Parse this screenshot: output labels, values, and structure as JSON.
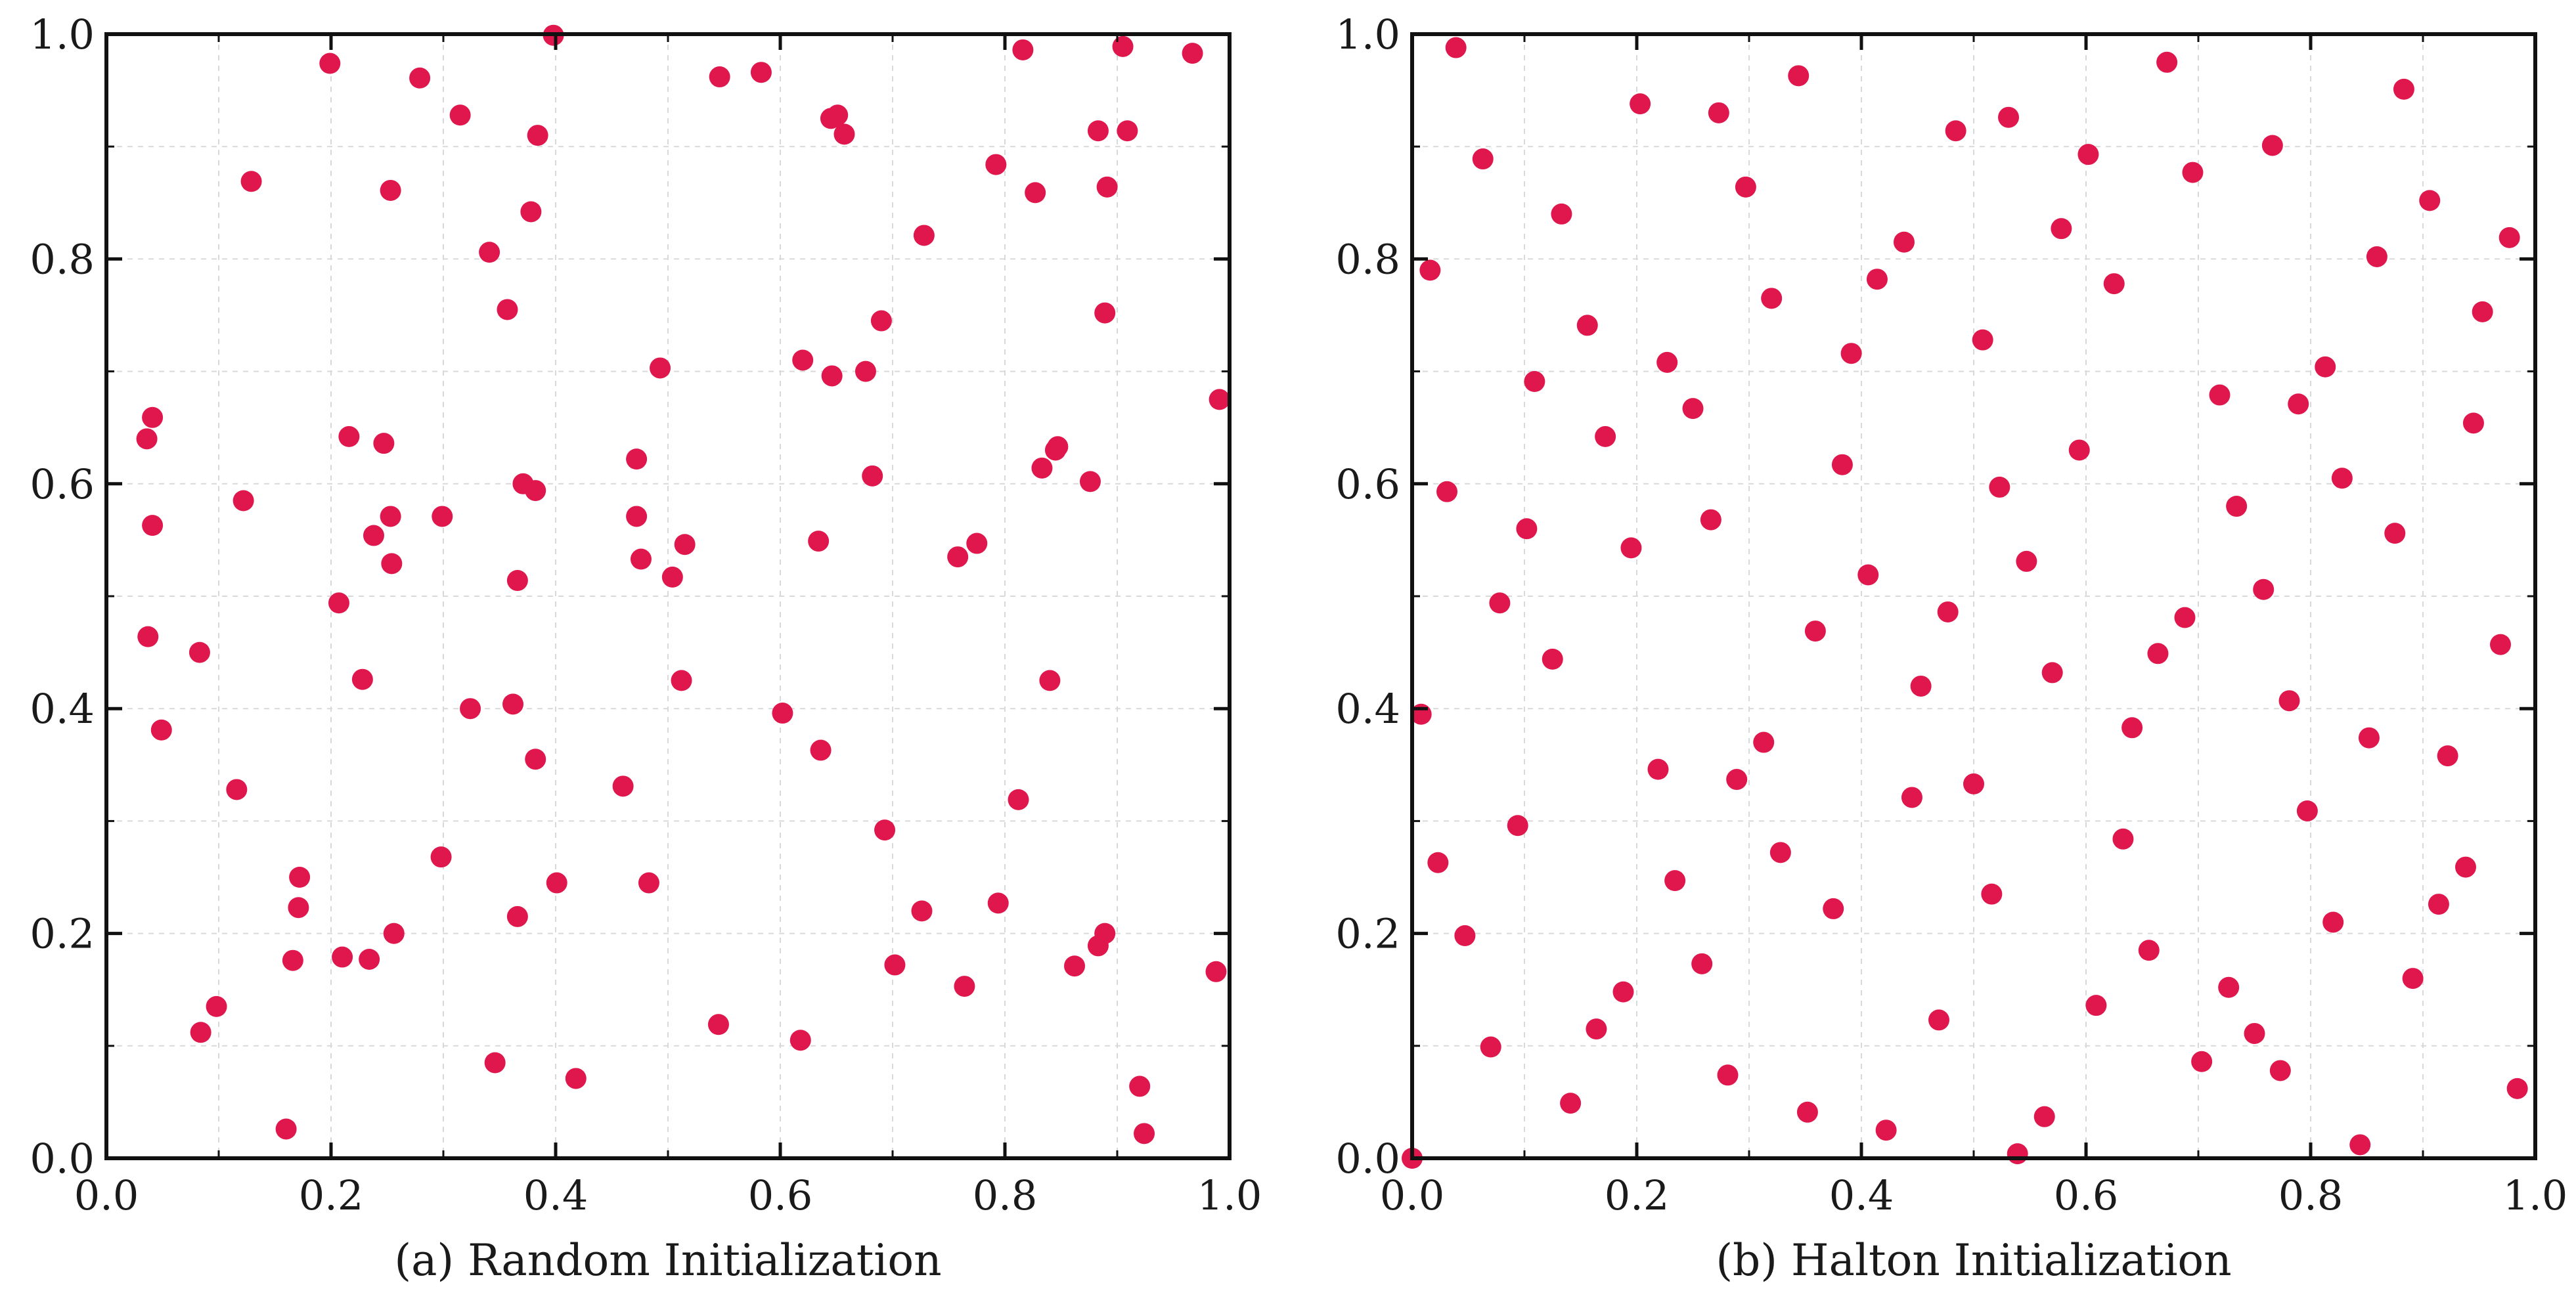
{
  "chart_data": [
    {
      "type": "scatter",
      "title": "(a) Random Initialization",
      "xlabel": "",
      "ylabel": "",
      "xlim": [
        0.0,
        1.0
      ],
      "ylim": [
        0.0,
        1.0
      ],
      "xticks": [
        "0.0",
        "0.2",
        "0.4",
        "0.6",
        "0.8",
        "1.0"
      ],
      "yticks": [
        "0.0",
        "0.2",
        "0.4",
        "0.6",
        "0.8",
        "1.0"
      ],
      "grid": true,
      "marker_color": "#e0174c",
      "series": [
        {
          "points": [
            [
              0.199,
              0.974
            ],
            [
              0.279,
              0.961
            ],
            [
              0.315,
              0.928
            ],
            [
              0.129,
              0.869
            ],
            [
              0.253,
              0.861
            ],
            [
              0.398,
              0.999
            ],
            [
              0.384,
              0.91
            ],
            [
              0.378,
              0.842
            ],
            [
              0.341,
              0.806
            ],
            [
              0.357,
              0.755
            ],
            [
              0.546,
              0.962
            ],
            [
              0.583,
              0.966
            ],
            [
              0.645,
              0.925
            ],
            [
              0.651,
              0.928
            ],
            [
              0.657,
              0.911
            ],
            [
              0.728,
              0.821
            ],
            [
              0.69,
              0.745
            ],
            [
              0.62,
              0.71
            ],
            [
              0.646,
              0.696
            ],
            [
              0.676,
              0.7
            ],
            [
              0.816,
              0.986
            ],
            [
              0.905,
              0.989
            ],
            [
              0.967,
              0.983
            ],
            [
              0.883,
              0.914
            ],
            [
              0.909,
              0.914
            ],
            [
              0.792,
              0.884
            ],
            [
              0.827,
              0.859
            ],
            [
              0.891,
              0.864
            ],
            [
              0.889,
              0.752
            ],
            [
              0.991,
              0.675
            ],
            [
              0.041,
              0.659
            ],
            [
              0.036,
              0.64
            ],
            [
              0.041,
              0.563
            ],
            [
              0.122,
              0.585
            ],
            [
              0.216,
              0.642
            ],
            [
              0.247,
              0.636
            ],
            [
              0.253,
              0.571
            ],
            [
              0.238,
              0.554
            ],
            [
              0.254,
              0.529
            ],
            [
              0.299,
              0.571
            ],
            [
              0.366,
              0.514
            ],
            [
              0.371,
              0.6
            ],
            [
              0.382,
              0.594
            ],
            [
              0.472,
              0.622
            ],
            [
              0.472,
              0.571
            ],
            [
              0.476,
              0.533
            ],
            [
              0.493,
              0.703
            ],
            [
              0.504,
              0.517
            ],
            [
              0.515,
              0.546
            ],
            [
              0.682,
              0.607
            ],
            [
              0.634,
              0.549
            ],
            [
              0.758,
              0.535
            ],
            [
              0.775,
              0.547
            ],
            [
              0.847,
              0.633
            ],
            [
              0.845,
              0.63
            ],
            [
              0.833,
              0.614
            ],
            [
              0.876,
              0.602
            ],
            [
              0.037,
              0.464
            ],
            [
              0.083,
              0.45
            ],
            [
              0.049,
              0.381
            ],
            [
              0.207,
              0.494
            ],
            [
              0.228,
              0.426
            ],
            [
              0.116,
              0.328
            ],
            [
              0.324,
              0.4
            ],
            [
              0.362,
              0.404
            ],
            [
              0.382,
              0.355
            ],
            [
              0.512,
              0.425
            ],
            [
              0.602,
              0.396
            ],
            [
              0.636,
              0.363
            ],
            [
              0.46,
              0.331
            ],
            [
              0.84,
              0.425
            ],
            [
              0.812,
              0.319
            ],
            [
              0.298,
              0.268
            ],
            [
              0.172,
              0.25
            ],
            [
              0.171,
              0.223
            ],
            [
              0.256,
              0.2
            ],
            [
              0.21,
              0.179
            ],
            [
              0.234,
              0.177
            ],
            [
              0.166,
              0.176
            ],
            [
              0.366,
              0.215
            ],
            [
              0.401,
              0.245
            ],
            [
              0.483,
              0.245
            ],
            [
              0.693,
              0.292
            ],
            [
              0.726,
              0.22
            ],
            [
              0.794,
              0.227
            ],
            [
              0.702,
              0.172
            ],
            [
              0.764,
              0.153
            ],
            [
              0.862,
              0.171
            ],
            [
              0.883,
              0.189
            ],
            [
              0.889,
              0.2
            ],
            [
              0.988,
              0.166
            ],
            [
              0.098,
              0.135
            ],
            [
              0.084,
              0.112
            ],
            [
              0.16,
              0.026
            ],
            [
              0.346,
              0.085
            ],
            [
              0.418,
              0.071
            ],
            [
              0.545,
              0.119
            ],
            [
              0.618,
              0.105
            ],
            [
              0.92,
              0.064
            ],
            [
              0.924,
              0.022
            ]
          ]
        }
      ]
    },
    {
      "type": "scatter",
      "title": "(b) Halton Initialization",
      "xlabel": "",
      "ylabel": "",
      "xlim": [
        0.0,
        1.0
      ],
      "ylim": [
        0.0,
        1.0
      ],
      "xticks": [
        "0.0",
        "0.2",
        "0.4",
        "0.6",
        "0.8",
        "1.0"
      ],
      "yticks": [
        "0.0",
        "0.2",
        "0.4",
        "0.6",
        "0.8",
        "1.0"
      ],
      "grid": true,
      "marker_color": "#e0174c",
      "series": [
        {
          "points": [
            [
              0.0,
              0.0
            ],
            [
              0.5,
              0.333
            ],
            [
              0.25,
              0.667
            ],
            [
              0.75,
              0.111
            ],
            [
              0.125,
              0.444
            ],
            [
              0.625,
              0.778
            ],
            [
              0.375,
              0.222
            ],
            [
              0.875,
              0.556
            ],
            [
              0.063,
              0.889
            ],
            [
              0.563,
              0.037
            ],
            [
              0.313,
              0.37
            ],
            [
              0.813,
              0.704
            ],
            [
              0.188,
              0.148
            ],
            [
              0.688,
              0.481
            ],
            [
              0.438,
              0.815
            ],
            [
              0.938,
              0.259
            ],
            [
              0.031,
              0.593
            ],
            [
              0.531,
              0.926
            ],
            [
              0.281,
              0.074
            ],
            [
              0.781,
              0.407
            ],
            [
              0.156,
              0.741
            ],
            [
              0.656,
              0.185
            ],
            [
              0.406,
              0.519
            ],
            [
              0.906,
              0.852
            ],
            [
              0.094,
              0.296
            ],
            [
              0.594,
              0.63
            ],
            [
              0.344,
              0.963
            ],
            [
              0.844,
              0.012
            ],
            [
              0.219,
              0.346
            ],
            [
              0.719,
              0.679
            ],
            [
              0.469,
              0.123
            ],
            [
              0.969,
              0.457
            ],
            [
              0.016,
              0.79
            ],
            [
              0.516,
              0.235
            ],
            [
              0.266,
              0.568
            ],
            [
              0.766,
              0.901
            ],
            [
              0.141,
              0.049
            ],
            [
              0.641,
              0.383
            ],
            [
              0.391,
              0.716
            ],
            [
              0.891,
              0.16
            ],
            [
              0.078,
              0.494
            ],
            [
              0.578,
              0.827
            ],
            [
              0.328,
              0.272
            ],
            [
              0.828,
              0.605
            ],
            [
              0.203,
              0.938
            ],
            [
              0.703,
              0.086
            ],
            [
              0.453,
              0.42
            ],
            [
              0.953,
              0.753
            ],
            [
              0.047,
              0.198
            ],
            [
              0.547,
              0.531
            ],
            [
              0.297,
              0.864
            ],
            [
              0.797,
              0.309
            ],
            [
              0.172,
              0.642
            ],
            [
              0.672,
              0.975
            ],
            [
              0.422,
              0.025
            ],
            [
              0.922,
              0.358
            ],
            [
              0.109,
              0.691
            ],
            [
              0.609,
              0.136
            ],
            [
              0.359,
              0.469
            ],
            [
              0.859,
              0.802
            ],
            [
              0.234,
              0.247
            ],
            [
              0.734,
              0.58
            ],
            [
              0.484,
              0.914
            ],
            [
              0.984,
              0.062
            ],
            [
              0.008,
              0.395
            ],
            [
              0.508,
              0.728
            ],
            [
              0.258,
              0.173
            ],
            [
              0.758,
              0.506
            ],
            [
              0.133,
              0.84
            ],
            [
              0.633,
              0.284
            ],
            [
              0.383,
              0.617
            ],
            [
              0.883,
              0.951
            ],
            [
              0.07,
              0.099
            ],
            [
              0.57,
              0.432
            ],
            [
              0.32,
              0.765
            ],
            [
              0.82,
              0.21
            ],
            [
              0.195,
              0.543
            ],
            [
              0.695,
              0.877
            ],
            [
              0.445,
              0.321
            ],
            [
              0.945,
              0.654
            ],
            [
              0.039,
              0.988
            ],
            [
              0.539,
              0.004
            ],
            [
              0.289,
              0.337
            ],
            [
              0.789,
              0.671
            ],
            [
              0.164,
              0.115
            ],
            [
              0.664,
              0.449
            ],
            [
              0.414,
              0.782
            ],
            [
              0.914,
              0.226
            ],
            [
              0.102,
              0.56
            ],
            [
              0.602,
              0.893
            ],
            [
              0.352,
              0.041
            ],
            [
              0.852,
              0.374
            ],
            [
              0.227,
              0.708
            ],
            [
              0.727,
              0.152
            ],
            [
              0.477,
              0.486
            ],
            [
              0.977,
              0.819
            ],
            [
              0.023,
              0.263
            ],
            [
              0.523,
              0.597
            ],
            [
              0.273,
              0.93
            ],
            [
              0.773,
              0.078
            ]
          ]
        }
      ]
    }
  ]
}
